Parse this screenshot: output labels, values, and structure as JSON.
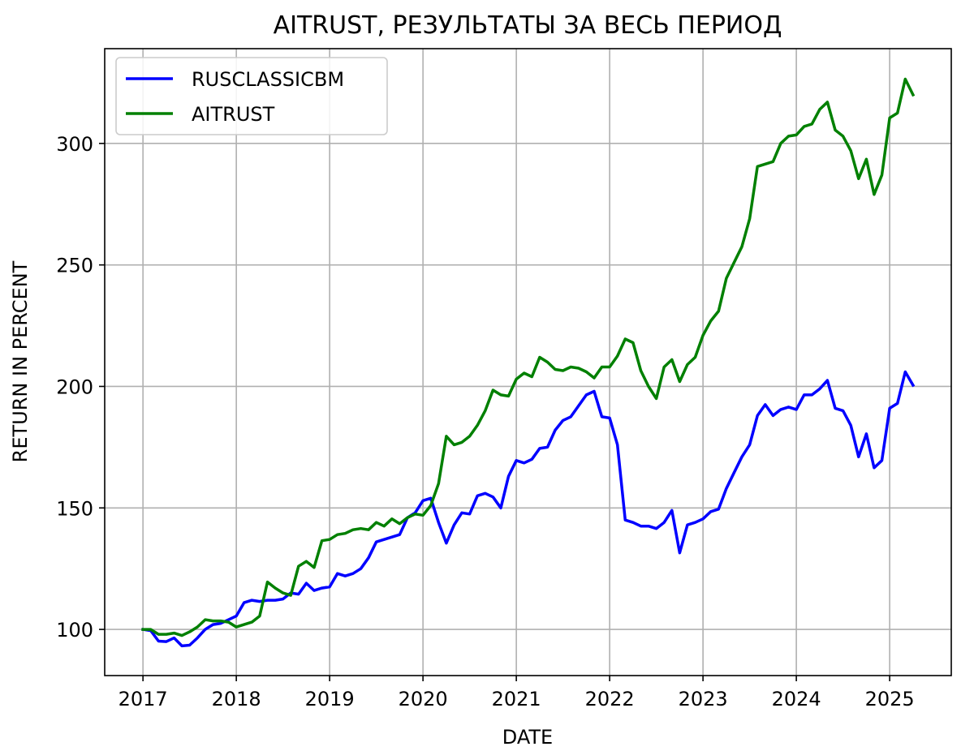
{
  "chart_data": {
    "type": "line",
    "title": "AITRUST, РЕЗУЛЬТАТЫ ЗА ВЕСЬ ПЕРИОД",
    "xlabel": "DATE",
    "ylabel": "RETURN IN PERCENT",
    "xlim": [
      2016.59,
      2025.66
    ],
    "ylim": [
      81,
      339
    ],
    "x_ticks": [
      2017,
      2018,
      2019,
      2020,
      2021,
      2022,
      2023,
      2024,
      2025
    ],
    "x_tick_labels": [
      "2017",
      "2018",
      "2019",
      "2020",
      "2021",
      "2022",
      "2023",
      "2024",
      "2025"
    ],
    "y_ticks": [
      100,
      150,
      200,
      250,
      300
    ],
    "y_tick_labels": [
      "100",
      "150",
      "200",
      "250",
      "300"
    ],
    "grid": true,
    "legend_position": "top-left",
    "x": [
      "2017-01",
      "2017-02",
      "2017-03",
      "2017-04",
      "2017-05",
      "2017-06",
      "2017-07",
      "2017-08",
      "2017-09",
      "2017-10",
      "2017-11",
      "2017-12",
      "2018-01",
      "2018-02",
      "2018-03",
      "2018-04",
      "2018-05",
      "2018-06",
      "2018-07",
      "2018-08",
      "2018-09",
      "2018-10",
      "2018-11",
      "2018-12",
      "2019-01",
      "2019-02",
      "2019-03",
      "2019-04",
      "2019-05",
      "2019-06",
      "2019-07",
      "2019-08",
      "2019-09",
      "2019-10",
      "2019-11",
      "2019-12",
      "2020-01",
      "2020-02",
      "2020-03",
      "2020-04",
      "2020-05",
      "2020-06",
      "2020-07",
      "2020-08",
      "2020-09",
      "2020-10",
      "2020-11",
      "2020-12",
      "2021-01",
      "2021-02",
      "2021-03",
      "2021-04",
      "2021-05",
      "2021-06",
      "2021-07",
      "2021-08",
      "2021-09",
      "2021-10",
      "2021-11",
      "2021-12",
      "2022-01",
      "2022-02",
      "2022-03",
      "2022-04",
      "2022-05",
      "2022-06",
      "2022-07",
      "2022-08",
      "2022-09",
      "2022-10",
      "2022-11",
      "2022-12",
      "2023-01",
      "2023-02",
      "2023-03",
      "2023-04",
      "2023-05",
      "2023-06",
      "2023-07",
      "2023-08",
      "2023-09",
      "2023-10",
      "2023-11",
      "2023-12",
      "2024-01",
      "2024-02",
      "2024-03",
      "2024-04",
      "2024-05",
      "2024-06",
      "2024-07",
      "2024-08",
      "2024-09",
      "2024-10",
      "2024-11",
      "2024-12",
      "2025-01",
      "2025-02",
      "2025-03",
      "2025-04"
    ],
    "series": [
      {
        "name": "RUSCLASSICBM",
        "color": "#0000ff",
        "values": [
          100,
          99.5,
          95.2,
          95,
          96.5,
          93.2,
          93.5,
          96.5,
          100,
          102,
          102.5,
          104,
          105.5,
          111,
          112,
          111.5,
          112,
          112,
          112.5,
          115,
          114.5,
          119,
          116,
          117,
          117.5,
          123,
          122,
          123,
          125,
          129.5,
          136,
          137,
          138,
          139,
          146,
          148,
          153,
          154,
          144,
          135.5,
          143,
          148,
          147.5,
          155,
          156,
          154.5,
          150,
          163,
          169.5,
          168.5,
          170,
          174.5,
          175,
          182,
          186,
          187.5,
          192,
          196.5,
          198,
          187.5,
          187,
          176,
          145,
          144,
          142.5,
          142.5,
          141.5,
          144,
          149,
          131.5,
          143,
          144,
          145.5,
          148.5,
          149.5,
          158,
          164.5,
          171,
          176,
          188,
          192.5,
          188,
          190.5,
          191.5,
          190.5,
          196.5,
          196.5,
          199,
          202.5,
          191,
          190,
          184,
          171,
          180.5,
          166.5,
          169.5,
          191,
          193,
          206,
          200.5
        ]
      },
      {
        "name": "AITRUST",
        "color": "#008000",
        "values": [
          100,
          100,
          98,
          98,
          98.5,
          97.5,
          99,
          101,
          104,
          103.5,
          103.5,
          103,
          101,
          102,
          103,
          105.5,
          119.5,
          117,
          115,
          114,
          126,
          128,
          125.5,
          136.5,
          137,
          139,
          139.5,
          141,
          141.5,
          141,
          144,
          142.5,
          145.5,
          143.5,
          146,
          147.5,
          147,
          151,
          160,
          179.5,
          176,
          177,
          179.5,
          184,
          190,
          198.5,
          196.5,
          196,
          203,
          205.5,
          204,
          212,
          210,
          207,
          206.5,
          208,
          207.5,
          206,
          203.5,
          208,
          208,
          212.5,
          219.5,
          218,
          206.5,
          200,
          195,
          208,
          211,
          202,
          209,
          212,
          221,
          227,
          231,
          244.5,
          251,
          257.5,
          269,
          290.5,
          291.5,
          292.5,
          300,
          303,
          303.5,
          307,
          308,
          314,
          317,
          305.5,
          303,
          297,
          285.5,
          293.5,
          279,
          287,
          310.5,
          312.5,
          326.5,
          320
        ]
      }
    ]
  }
}
